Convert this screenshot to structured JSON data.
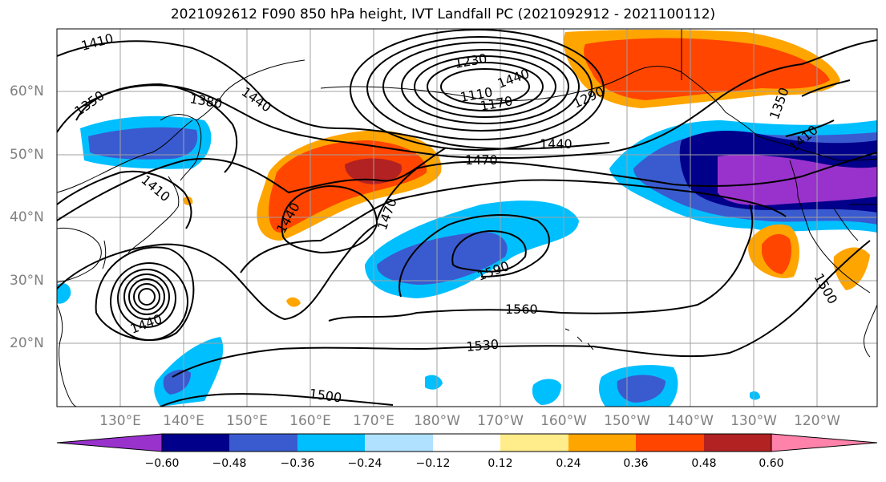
{
  "title": "2021092612 F090 850 hPa height, IVT Landfall PC (2021092912 - 2021100112)",
  "lat_labels": [
    "60°N",
    "50°N",
    "40°N",
    "30°N",
    "20°N"
  ],
  "lon_labels": [
    "130°E",
    "140°E",
    "150°E",
    "160°E",
    "170°E",
    "180°W",
    "170°W",
    "160°W",
    "150°W",
    "140°W",
    "130°W",
    "120°W"
  ],
  "colorbar": {
    "ticks": [
      "−0.60",
      "−0.48",
      "−0.36",
      "−0.24",
      "−0.12",
      "0.12",
      "0.24",
      "0.36",
      "0.48",
      "0.60"
    ],
    "colors": [
      "#9932cc",
      "#00008b",
      "#3a5bd0",
      "#00bfff",
      "#b0e2ff",
      "#ffffff",
      "#ffec8b",
      "#ffa500",
      "#ff4500",
      "#b22222",
      "#ff82ab"
    ]
  },
  "contour_labels": [
    "1410",
    "1350",
    "1380",
    "1440",
    "1410",
    "1440",
    "1470",
    "1230",
    "1110",
    "1170",
    "1440",
    "1290",
    "1350",
    "1410",
    "1500",
    "1590",
    "1560",
    "1530",
    "1500",
    "1440",
    "1470",
    "1440"
  ]
}
